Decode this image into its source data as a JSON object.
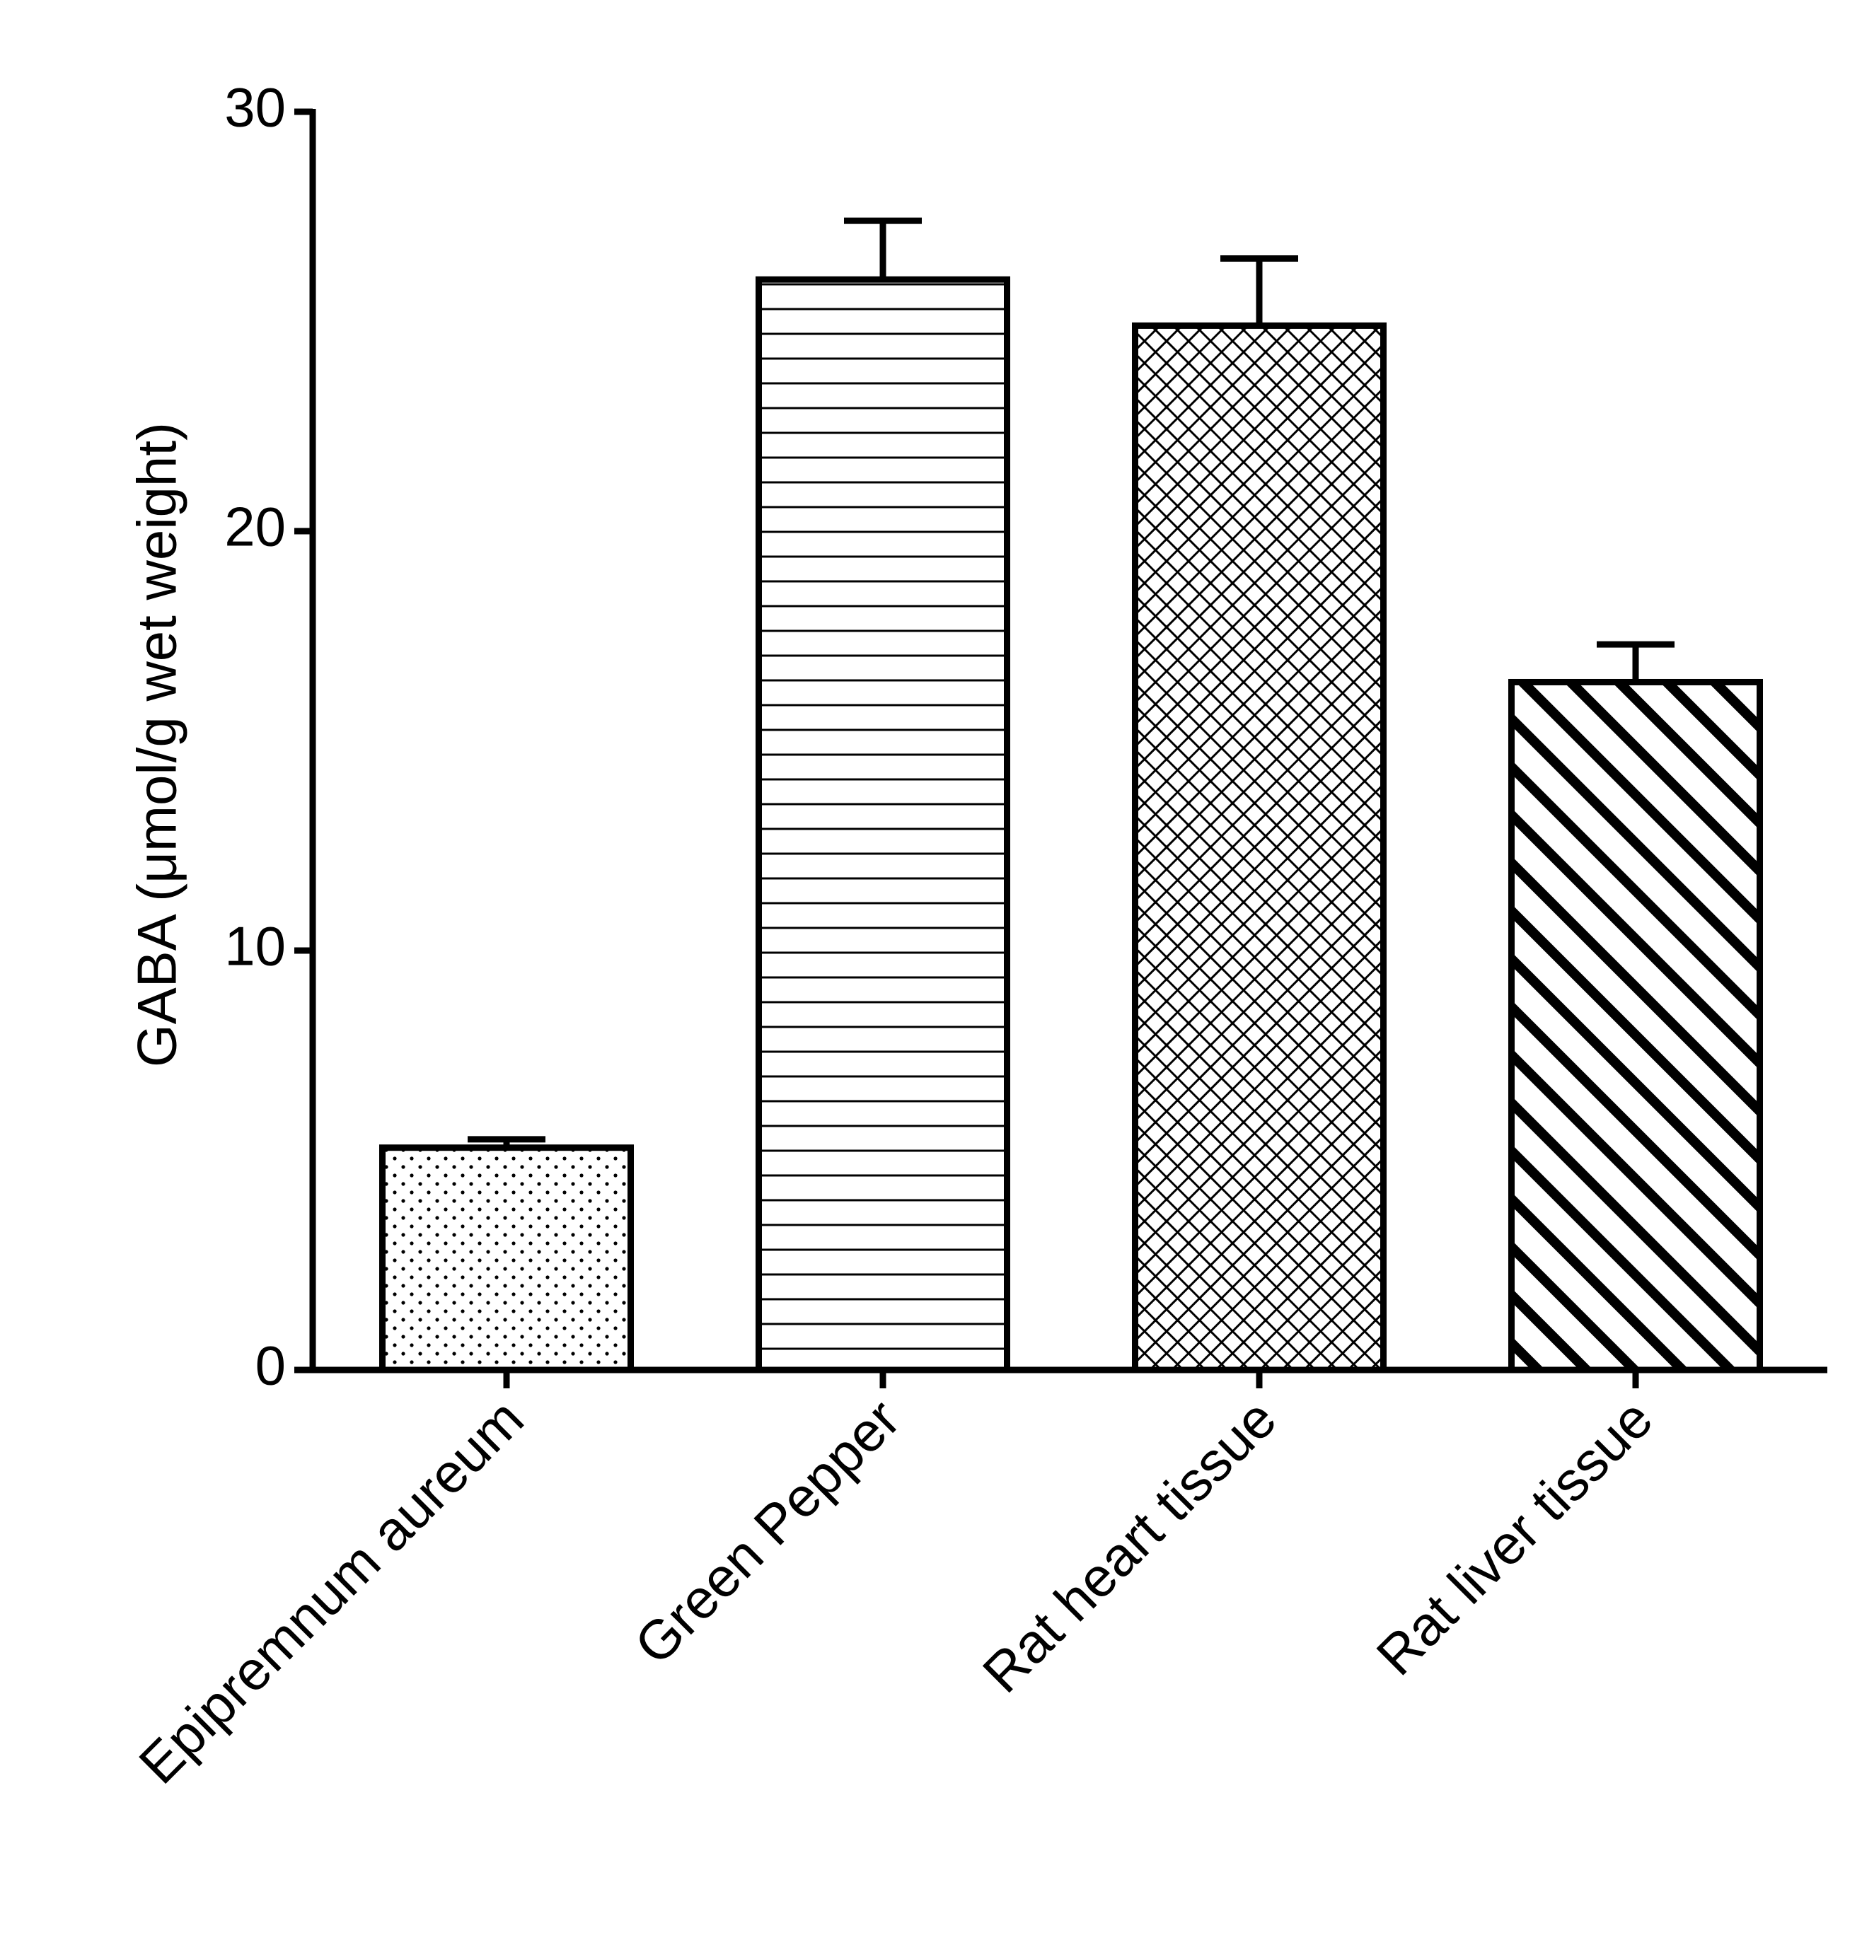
{
  "chart_data": {
    "type": "bar",
    "y_label": "GABA (μmol/g wet weight)",
    "categories": [
      "Epipremnum aureum",
      "Green Pepper",
      "Rat heart tissue",
      "Rat liver tissue"
    ],
    "values": [
      5.3,
      26.0,
      24.9,
      16.4
    ],
    "errors": [
      0.2,
      1.4,
      1.6,
      0.9
    ],
    "patterns": [
      "dots",
      "horizontal",
      "crosshatch",
      "diagonal"
    ],
    "color": "#000000",
    "ylim": [
      0,
      30
    ],
    "yticks": [
      0,
      10,
      20,
      30
    ],
    "grid": false
  }
}
